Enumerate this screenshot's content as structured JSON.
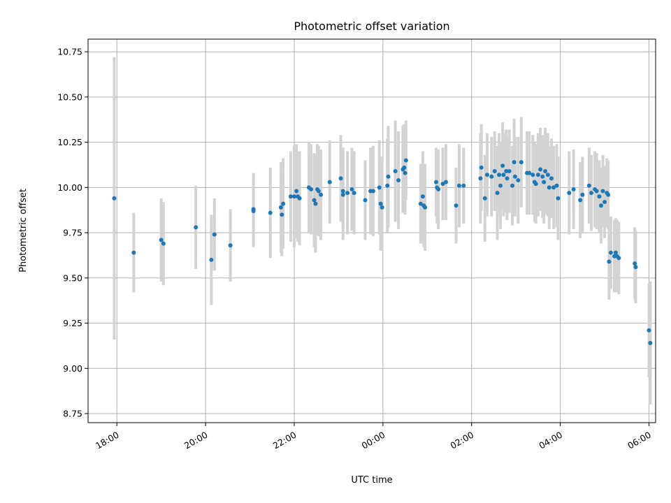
{
  "chart_data": {
    "type": "scatter",
    "title": "Photometric offset variation",
    "xlabel": "UTC time",
    "ylabel": "Photometric offset",
    "x_unit": "hours after 18:00 UTC",
    "xlim_hours": [
      -0.65,
      12.15
    ],
    "ylim": [
      8.7,
      10.82
    ],
    "xticks": [
      {
        "hours": 0,
        "label": "18:00"
      },
      {
        "hours": 2,
        "label": "20:00"
      },
      {
        "hours": 4,
        "label": "22:00"
      },
      {
        "hours": 6,
        "label": "00:00"
      },
      {
        "hours": 8,
        "label": "02:00"
      },
      {
        "hours": 10,
        "label": "04:00"
      },
      {
        "hours": 12,
        "label": "06:00"
      }
    ],
    "yticks": [
      {
        "value": 8.75,
        "label": "8.75"
      },
      {
        "value": 9.0,
        "label": "9.00"
      },
      {
        "value": 9.25,
        "label": "9.25"
      },
      {
        "value": 9.5,
        "label": "9.50"
      },
      {
        "value": 9.75,
        "label": "9.75"
      },
      {
        "value": 10.0,
        "label": "10.00"
      },
      {
        "value": 10.25,
        "label": "10.25"
      },
      {
        "value": 10.5,
        "label": "10.50"
      },
      {
        "value": 10.75,
        "label": "10.75"
      }
    ],
    "grid": true,
    "colors": {
      "points": "#1f77b4",
      "errorbars": "#d3d3d3",
      "grid": "#b0b0b0"
    },
    "points": [
      [
        -0.06,
        9.94,
        0.78
      ],
      [
        0.38,
        9.64,
        0.22
      ],
      [
        1.0,
        9.71,
        0.23
      ],
      [
        1.05,
        9.69,
        0.23
      ],
      [
        1.78,
        9.78,
        0.23
      ],
      [
        2.13,
        9.6,
        0.25
      ],
      [
        2.2,
        9.74,
        0.2
      ],
      [
        2.56,
        9.68,
        0.2
      ],
      [
        3.08,
        9.88,
        0.2
      ],
      [
        3.08,
        9.87,
        0.2
      ],
      [
        3.46,
        9.86,
        0.25
      ],
      [
        3.7,
        9.89,
        0.25
      ],
      [
        3.72,
        9.85,
        0.23
      ],
      [
        3.75,
        9.91,
        0.25
      ],
      [
        3.92,
        9.95,
        0.25
      ],
      [
        4.0,
        9.95,
        0.28
      ],
      [
        4.05,
        9.98,
        0.26
      ],
      [
        4.08,
        9.95,
        0.25
      ],
      [
        4.12,
        9.94,
        0.26
      ],
      [
        4.33,
        10.0,
        0.25
      ],
      [
        4.38,
        9.99,
        0.25
      ],
      [
        4.45,
        9.93,
        0.26
      ],
      [
        4.48,
        9.91,
        0.27
      ],
      [
        4.52,
        9.99,
        0.25
      ],
      [
        4.55,
        9.98,
        0.25
      ],
      [
        4.6,
        9.96,
        0.25
      ],
      [
        4.8,
        10.03,
        0.23
      ],
      [
        5.05,
        10.05,
        0.24
      ],
      [
        5.1,
        9.96,
        0.25
      ],
      [
        5.1,
        9.98,
        0.24
      ],
      [
        5.2,
        9.97,
        0.23
      ],
      [
        5.3,
        9.99,
        0.23
      ],
      [
        5.35,
        9.97,
        0.23
      ],
      [
        5.6,
        9.93,
        0.22
      ],
      [
        5.72,
        9.98,
        0.24
      ],
      [
        5.78,
        9.98,
        0.25
      ],
      [
        5.92,
        10.0,
        0.26
      ],
      [
        5.95,
        9.91,
        0.26
      ],
      [
        5.98,
        9.89,
        0.24
      ],
      [
        6.1,
        10.01,
        0.26
      ],
      [
        6.12,
        10.06,
        0.28
      ],
      [
        6.28,
        10.09,
        0.28
      ],
      [
        6.35,
        10.04,
        0.27
      ],
      [
        6.45,
        10.1,
        0.24
      ],
      [
        6.48,
        10.11,
        0.24
      ],
      [
        6.5,
        10.08,
        0.23
      ],
      [
        6.52,
        10.15,
        0.22
      ],
      [
        6.85,
        9.91,
        0.22
      ],
      [
        6.9,
        9.95,
        0.25
      ],
      [
        6.92,
        9.9,
        0.23
      ],
      [
        6.95,
        9.89,
        0.24
      ],
      [
        7.2,
        10.03,
        0.19
      ],
      [
        7.22,
        10.0,
        0.2
      ],
      [
        7.25,
        9.99,
        0.22
      ],
      [
        7.35,
        10.02,
        0.2
      ],
      [
        7.42,
        10.03,
        0.21
      ],
      [
        7.65,
        9.9,
        0.21
      ],
      [
        7.72,
        10.01,
        0.23
      ],
      [
        7.82,
        10.01,
        0.21
      ],
      [
        8.2,
        10.05,
        0.25
      ],
      [
        8.22,
        10.11,
        0.24
      ],
      [
        8.3,
        9.94,
        0.24
      ],
      [
        8.35,
        10.07,
        0.23
      ],
      [
        8.45,
        10.06,
        0.22
      ],
      [
        8.52,
        10.09,
        0.22
      ],
      [
        8.58,
        9.97,
        0.26
      ],
      [
        8.62,
        10.07,
        0.23
      ],
      [
        8.65,
        10.01,
        0.24
      ],
      [
        8.7,
        10.12,
        0.24
      ],
      [
        8.72,
        10.07,
        0.23
      ],
      [
        8.78,
        10.09,
        0.23
      ],
      [
        8.8,
        10.05,
        0.23
      ],
      [
        8.85,
        10.09,
        0.23
      ],
      [
        8.92,
        10.01,
        0.22
      ],
      [
        8.96,
        10.14,
        0.24
      ],
      [
        8.98,
        10.06,
        0.22
      ],
      [
        9.05,
        10.04,
        0.24
      ],
      [
        9.12,
        10.14,
        0.25
      ],
      [
        9.25,
        10.08,
        0.23
      ],
      [
        9.3,
        10.08,
        0.23
      ],
      [
        9.38,
        10.07,
        0.22
      ],
      [
        9.42,
        10.03,
        0.22
      ],
      [
        9.45,
        10.02,
        0.22
      ],
      [
        9.5,
        10.07,
        0.23
      ],
      [
        9.55,
        10.1,
        0.23
      ],
      [
        9.6,
        10.06,
        0.23
      ],
      [
        9.63,
        10.03,
        0.23
      ],
      [
        9.66,
        10.09,
        0.24
      ],
      [
        9.72,
        10.07,
        0.23
      ],
      [
        9.75,
        10.0,
        0.23
      ],
      [
        9.8,
        10.05,
        0.22
      ],
      [
        9.85,
        10.0,
        0.23
      ],
      [
        9.92,
        10.01,
        0.23
      ],
      [
        9.95,
        9.94,
        0.23
      ],
      [
        10.2,
        9.97,
        0.23
      ],
      [
        10.3,
        9.99,
        0.22
      ],
      [
        10.45,
        9.93,
        0.21
      ],
      [
        10.5,
        9.96,
        0.21
      ],
      [
        10.65,
        10.01,
        0.21
      ],
      [
        10.7,
        9.97,
        0.21
      ],
      [
        10.78,
        9.99,
        0.21
      ],
      [
        10.82,
        9.98,
        0.21
      ],
      [
        10.88,
        9.95,
        0.2
      ],
      [
        10.92,
        9.9,
        0.21
      ],
      [
        10.96,
        9.98,
        0.2
      ],
      [
        11.0,
        9.92,
        0.2
      ],
      [
        11.05,
        9.97,
        0.19
      ],
      [
        11.08,
        9.96,
        0.19
      ],
      [
        11.1,
        9.59,
        0.21
      ],
      [
        11.14,
        9.64,
        0.2
      ],
      [
        11.22,
        9.62,
        0.2
      ],
      [
        11.25,
        9.64,
        0.19
      ],
      [
        11.28,
        9.62,
        0.2
      ],
      [
        11.32,
        9.61,
        0.2
      ],
      [
        11.68,
        9.58,
        0.2
      ],
      [
        11.7,
        9.56,
        0.2
      ],
      [
        12.0,
        9.21,
        0.26
      ],
      [
        12.03,
        9.14,
        0.34
      ]
    ]
  }
}
